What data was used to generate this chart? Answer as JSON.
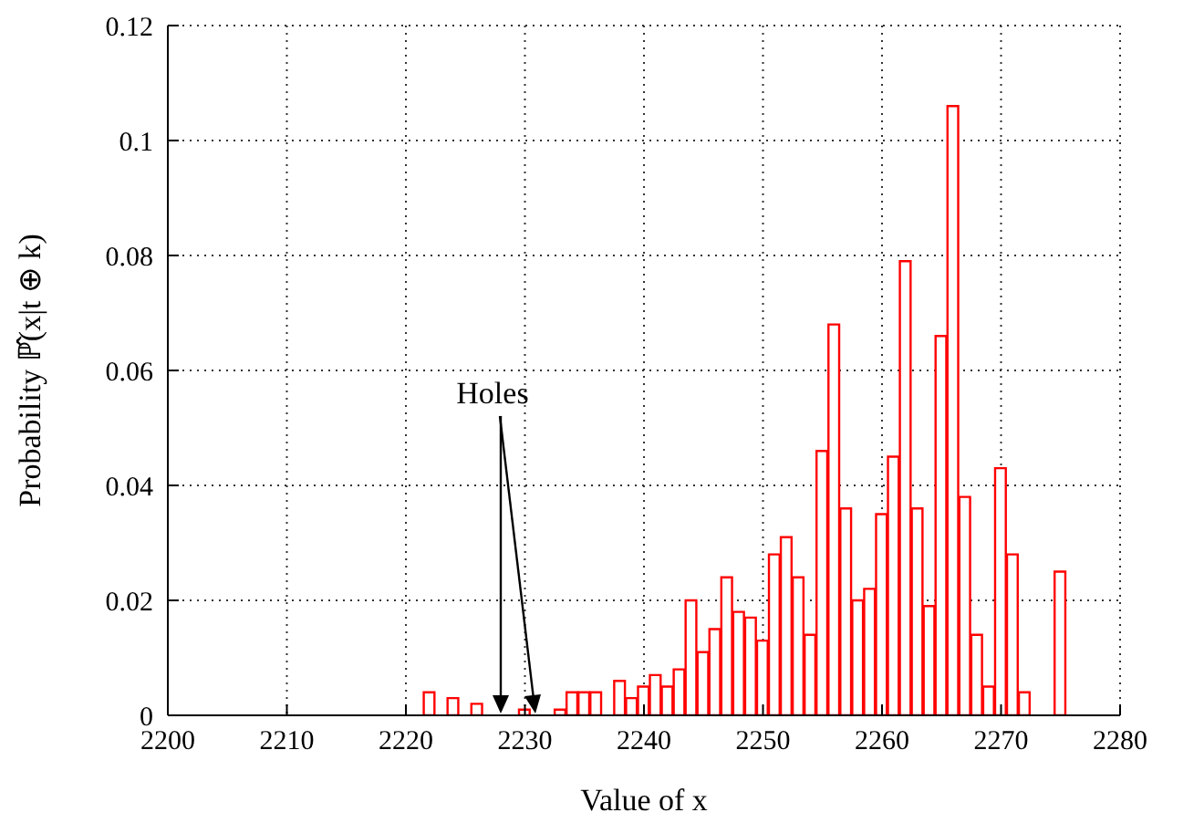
{
  "chart_data": {
    "type": "bar",
    "xlabel": "Value of x",
    "ylabel": "Probability ℙ̂(x|t ⊕ k)",
    "x": [
      2222,
      2224,
      2226,
      2230,
      2233,
      2234,
      2235,
      2236,
      2238,
      2239,
      2240,
      2241,
      2242,
      2243,
      2244,
      2245,
      2246,
      2247,
      2248,
      2249,
      2250,
      2251,
      2252,
      2253,
      2254,
      2255,
      2256,
      2257,
      2258,
      2259,
      2260,
      2261,
      2262,
      2263,
      2264,
      2265,
      2266,
      2267,
      2268,
      2269,
      2270,
      2271,
      2272,
      2275
    ],
    "values": [
      0.004,
      0.003,
      0.002,
      0.001,
      0.001,
      0.004,
      0.004,
      0.004,
      0.006,
      0.003,
      0.005,
      0.007,
      0.005,
      0.008,
      0.02,
      0.011,
      0.015,
      0.024,
      0.018,
      0.017,
      0.013,
      0.028,
      0.031,
      0.024,
      0.014,
      0.046,
      0.068,
      0.036,
      0.02,
      0.022,
      0.035,
      0.045,
      0.079,
      0.036,
      0.019,
      0.066,
      0.106,
      0.038,
      0.014,
      0.005,
      0.043,
      0.028,
      0.004,
      0.025
    ],
    "color": "#ff0000",
    "xlim": [
      2200,
      2280
    ],
    "xticks": [
      2200,
      2210,
      2220,
      2230,
      2240,
      2250,
      2260,
      2270,
      2280
    ],
    "ylim": [
      0,
      0.12
    ],
    "yticks": [
      0,
      0.02,
      0.04,
      0.06,
      0.08,
      0.1,
      0.12
    ],
    "grid": true,
    "annotations": [
      "Holes"
    ]
  }
}
